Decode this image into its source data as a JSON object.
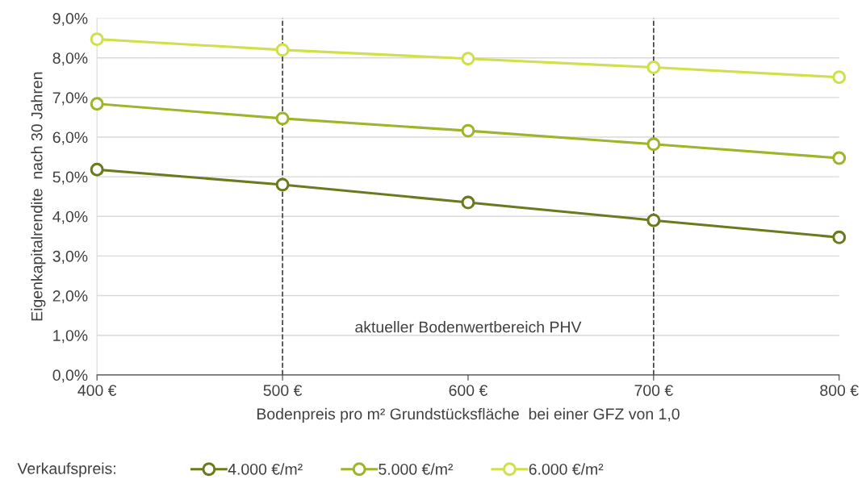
{
  "chart_data": {
    "type": "line",
    "xlabel": "Bodenpreis pro m² Grundstücksfläche  bei einer GFZ von 1,0",
    "ylabel": "Eigenkapitalrendite  nach 30 Jahren",
    "legend_title": "Verkaufspreis:",
    "x": [
      400,
      500,
      600,
      700,
      800
    ],
    "xlim": [
      400,
      800
    ],
    "xticks": [
      {
        "value": 400,
        "label": "400 €"
      },
      {
        "value": 500,
        "label": "500 €"
      },
      {
        "value": 600,
        "label": "600 €"
      },
      {
        "value": 700,
        "label": "700 €"
      },
      {
        "value": 800,
        "label": "800 €"
      }
    ],
    "ylim": [
      0,
      9
    ],
    "yticks": [
      {
        "value": 0,
        "label": "0,0%"
      },
      {
        "value": 1,
        "label": "1,0%"
      },
      {
        "value": 2,
        "label": "2,0%"
      },
      {
        "value": 3,
        "label": "3,0%"
      },
      {
        "value": 4,
        "label": "4,0%"
      },
      {
        "value": 5,
        "label": "5,0%"
      },
      {
        "value": 6,
        "label": "6,0%"
      },
      {
        "value": 7,
        "label": "7,0%"
      },
      {
        "value": 8,
        "label": "8,0%"
      },
      {
        "value": 9,
        "label": "9,0%"
      }
    ],
    "series": [
      {
        "name": "4.000 €/m²",
        "color": "#6b7a1e",
        "values": [
          5.18,
          4.8,
          4.35,
          3.9,
          3.47
        ]
      },
      {
        "name": "5.000 €/m²",
        "color": "#9db52a",
        "values": [
          6.84,
          6.47,
          6.16,
          5.82,
          5.47
        ]
      },
      {
        "name": "6.000 €/m²",
        "color": "#cfe04a",
        "values": [
          8.47,
          8.2,
          7.98,
          7.76,
          7.51
        ]
      }
    ],
    "ref_lines": [
      {
        "axis": "x",
        "value": 500,
        "color": "#404040",
        "line_style": "dashed"
      },
      {
        "axis": "x",
        "value": 700,
        "color": "#404040",
        "line_style": "dashed"
      }
    ],
    "annotations": [
      "aktueller Bodenwertbereich PHV"
    ],
    "grid": "y",
    "legend": "bottom",
    "marker": "circle",
    "line_style": "solid"
  }
}
